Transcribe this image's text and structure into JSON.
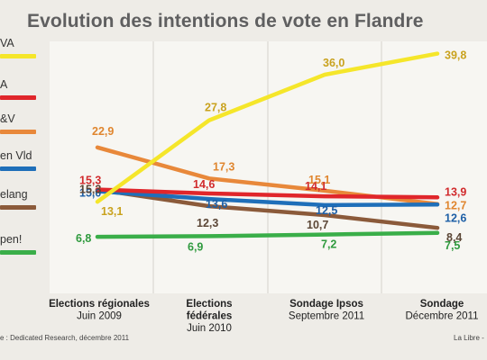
{
  "chart_data": {
    "type": "line",
    "title": "Evolution des intentions de vote en Flandre",
    "categories": [
      {
        "lines": [
          "Elections régionales",
          "Juin 2009"
        ]
      },
      {
        "lines": [
          "Elections",
          "fédérales",
          "Juin 2010"
        ]
      },
      {
        "lines": [
          "Sondage Ipsos",
          "Septembre 2011"
        ]
      },
      {
        "lines": [
          "Sondage",
          "Décembre 2011"
        ]
      }
    ],
    "series": [
      {
        "name": "VA",
        "color": "#f5e62a",
        "values": [
          13.1,
          27.8,
          36.0,
          39.8
        ],
        "labels": [
          "13,1",
          "27,8",
          "36,0",
          "39,8"
        ],
        "label_color": "#c9a21e"
      },
      {
        "name": "A",
        "color": "#e0262b",
        "values": [
          15.3,
          14.6,
          14.1,
          13.9
        ],
        "labels": [
          "15,3",
          "14,6",
          "14,1",
          "13,9"
        ],
        "label_color": "#d12a2c"
      },
      {
        "name": "&V",
        "color": "#e8883a",
        "values": [
          22.9,
          17.3,
          15.1,
          12.7
        ],
        "labels": [
          "22,9",
          "17,3",
          "15,1",
          "12,7"
        ],
        "label_color": "#e0862f"
      },
      {
        "name": "en Vld",
        "color": "#1f6fb9",
        "values": [
          15.0,
          13.6,
          12.5,
          12.6
        ],
        "labels": [
          "15,0",
          "13,6",
          "12,5",
          "12,6"
        ],
        "label_color": "#1d5fa6"
      },
      {
        "name": "elang",
        "color": "#8b5a3a",
        "values": [
          15.3,
          12.3,
          10.7,
          8.4
        ],
        "labels": [
          "15,3",
          "12,3",
          "10,7",
          "8,4"
        ],
        "label_color": "#5b4636"
      },
      {
        "name": "pen!",
        "color": "#3aae49",
        "values": [
          6.8,
          6.9,
          7.2,
          7.5
        ],
        "labels": [
          "6,8",
          "6,9",
          "7,2",
          "7,5"
        ],
        "label_color": "#2f9a3e"
      }
    ],
    "ylim": [
      0,
      42
    ],
    "grid": true,
    "legend": "left",
    "source": "e : Dedicated Research, décembre 2011",
    "credit": "La Libre -"
  }
}
